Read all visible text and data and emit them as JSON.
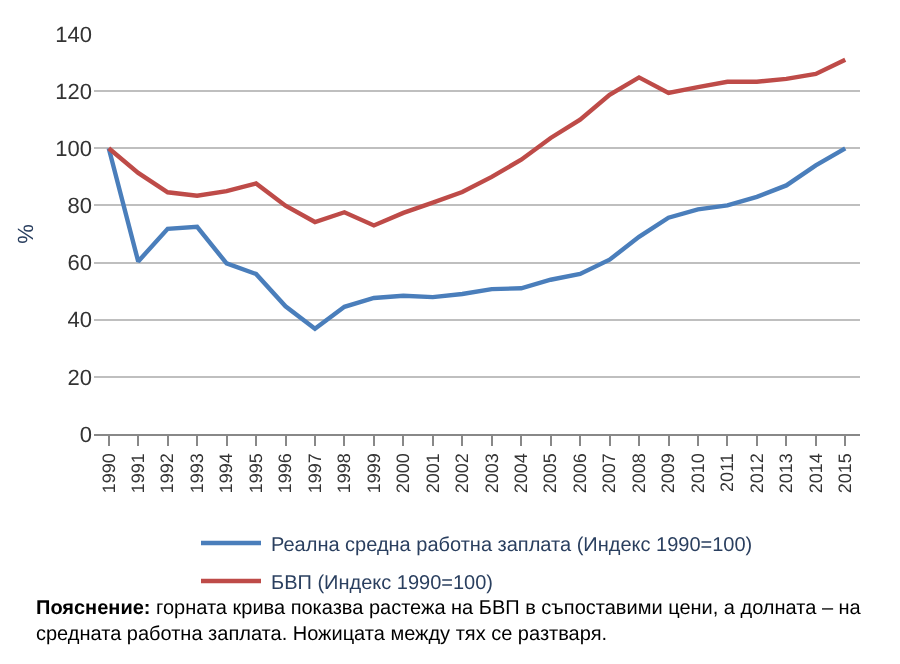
{
  "chart_data": {
    "type": "line",
    "ylabel": "%",
    "categories": [
      "1990",
      "1991",
      "1992",
      "1993",
      "1994",
      "1995",
      "1996",
      "1997",
      "1998",
      "1999",
      "2000",
      "2001",
      "2002",
      "2003",
      "2004",
      "2005",
      "2006",
      "2007",
      "2008",
      "2009",
      "2010",
      "2011",
      "2012",
      "2013",
      "2014",
      "2015"
    ],
    "series": [
      {
        "name": "Реална средна работна заплата (Индекс 1990=100)",
        "color": "#4a7ebb",
        "values": [
          100,
          60.4,
          71.8,
          72.5,
          59.7,
          56,
          44.7,
          36.8,
          44.5,
          47.6,
          48.4,
          47.9,
          49,
          50.7,
          51,
          54,
          56,
          61,
          69,
          75.7,
          78.6,
          80,
          83,
          87,
          94,
          100
        ]
      },
      {
        "name": "БВП (Индекс 1990=100)",
        "color": "#be4b48",
        "values": [
          100,
          91.4,
          84.6,
          83.4,
          85,
          87.7,
          79.9,
          74.2,
          77.6,
          73,
          77.4,
          81,
          84.7,
          90,
          96,
          103.6,
          110,
          118.7,
          124.8,
          119.4,
          121.4,
          123.3,
          123.3,
          124.3,
          126,
          131
        ]
      }
    ],
    "ylim": [
      0,
      140
    ],
    "yticks": [
      0,
      20,
      40,
      60,
      80,
      100,
      120,
      140
    ],
    "grid": "y",
    "legend": "bottom",
    "marker": "none",
    "line_style": "solid",
    "annotations": [
      "Пояснение: горната крива показва растежа на БВП в съпоставими цени, а долната – на средната работна заплата. Ножицата между тях се разтваря."
    ]
  }
}
